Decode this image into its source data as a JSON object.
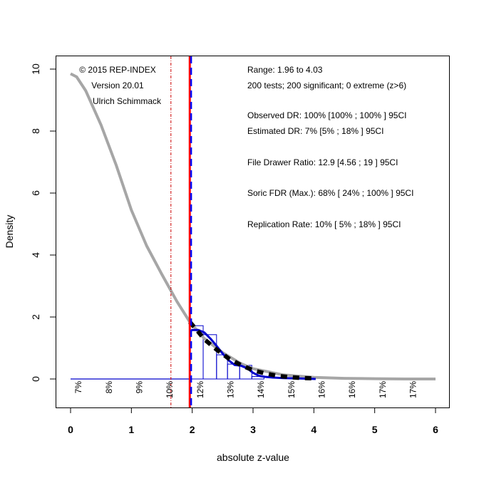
{
  "chart_data": {
    "type": "line",
    "title": "",
    "xlabel": "absolute z-value",
    "ylabel": "Density",
    "xlim": [
      -0.25,
      6.25
    ],
    "ylim": [
      -0.9,
      10.3
    ],
    "x_ticks": [
      "0",
      "1",
      "2",
      "3",
      "4",
      "5",
      "6"
    ],
    "x_tick_values": [
      0,
      1,
      2,
      3,
      4,
      5,
      6
    ],
    "y_ticks": [
      "0",
      "2",
      "4",
      "6",
      "8",
      "10"
    ],
    "y_tick_values": [
      0,
      2,
      4,
      6,
      8,
      10
    ],
    "grid": false,
    "colors": {
      "gray_curve": "#a6a6a6",
      "fit_curve": "#0000cc",
      "histogram": "#0000cc",
      "dashed_curve": "#000000",
      "critical_line": "#ff0000",
      "mean_line": "#0000ff",
      "alpha_line": "#cc0000",
      "baseline": "#0000cc"
    },
    "histogram": {
      "bin_edges": [
        1.96,
        2.18,
        2.4,
        2.58,
        2.78,
        2.98,
        3.18
      ],
      "densities": [
        1.72,
        1.43,
        0.78,
        0.48,
        0.44,
        0.08
      ]
    },
    "series": [
      {
        "name": "gray density",
        "x": [
          0,
          0.1,
          0.25,
          0.5,
          0.75,
          1.0,
          1.25,
          1.5,
          1.75,
          1.96,
          2.2,
          2.5,
          2.8,
          3.0,
          3.5,
          4.0,
          4.5,
          5.0,
          5.5,
          6.0
        ],
        "y": [
          9.85,
          9.75,
          9.3,
          8.2,
          6.9,
          5.45,
          4.3,
          3.38,
          2.5,
          1.84,
          1.3,
          0.85,
          0.5,
          0.33,
          0.13,
          0.05,
          0.02,
          0.01,
          0.0,
          0.0
        ]
      },
      {
        "name": "blue fit",
        "x": [
          1.96,
          2.0,
          2.1,
          2.2,
          2.3,
          2.4,
          2.5,
          2.6,
          2.7,
          2.8,
          2.9,
          3.0,
          3.1,
          3.2,
          3.3,
          3.5,
          3.7,
          3.9,
          4.03
        ],
        "y": [
          1.55,
          1.58,
          1.58,
          1.5,
          1.3,
          1.07,
          0.82,
          0.6,
          0.45,
          0.43,
          0.35,
          0.2,
          0.1,
          0.07,
          0.05,
          0.03,
          0.02,
          0.01,
          0.0
        ]
      },
      {
        "name": "black dashed",
        "x": [
          1.96,
          2.1,
          2.2,
          2.4,
          2.6,
          2.8,
          3.0,
          3.2,
          3.4,
          3.6,
          3.8,
          4.0
        ],
        "y": [
          1.84,
          1.52,
          1.28,
          0.95,
          0.66,
          0.45,
          0.28,
          0.18,
          0.1,
          0.06,
          0.03,
          0.02
        ]
      }
    ],
    "vlines": [
      {
        "name": "alpha-line",
        "x": 1.65,
        "style": "dotdash"
      },
      {
        "name": "critical-line",
        "x": 1.96,
        "style": "solid"
      },
      {
        "name": "mean-line",
        "x": 1.97,
        "style": "dashed"
      }
    ],
    "baseline": {
      "x_from": 0,
      "x_to": 1.96,
      "y": 0
    },
    "percent_labels": {
      "x": [
        0.13,
        0.63,
        1.13,
        1.63,
        2.13,
        2.63,
        3.13,
        3.63,
        4.13,
        4.63,
        5.13,
        5.63
      ],
      "labels": [
        "7%",
        "8%",
        "9%",
        "10%",
        "12%",
        "13%",
        "14%",
        "15%",
        "16%",
        "16%",
        "17%",
        "17%"
      ]
    },
    "annotations_left": [
      "© 2015 REP-INDEX",
      "Version 20.01",
      "Ulrich Schimmack"
    ],
    "annotations_right": [
      "Range: 1.96 to 4.03",
      "200 tests; 200 significant; 0 extreme (z>6)",
      "",
      "Observed DR: 100% [100% ; 100% ] 95CI",
      "Estimated DR: 7% [5% ; 18% ] 95CI",
      "",
      "File Drawer Ratio: 12.9 [4.56 ; 19 ] 95CI",
      "",
      "Soric FDR (Max.): 68% [ 24% ; 100% ] 95CI",
      "",
      "Replication Rate: 10% [ 5% ; 18% ] 95CI"
    ]
  }
}
